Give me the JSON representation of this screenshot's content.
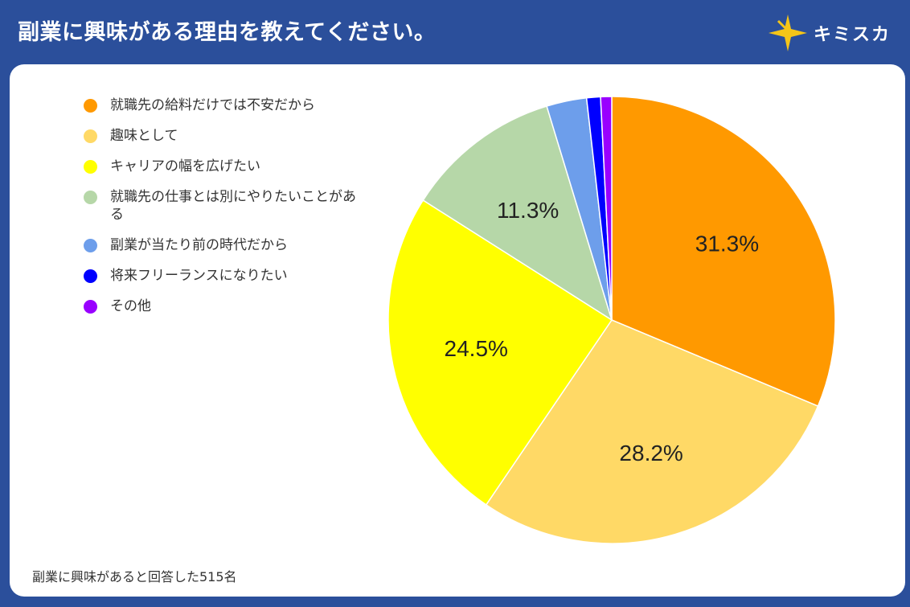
{
  "header": {
    "title": "副業に興味がある理由を教えてください。"
  },
  "brand": {
    "name": "キミスカ",
    "icon": "star-icon",
    "icon_color": "#f5c518"
  },
  "colors": {
    "header_bg": "#2b4f9b",
    "series": [
      "#ff9900",
      "#ffd966",
      "#ffff00",
      "#b6d7a8",
      "#6d9eeb",
      "#0000ff",
      "#9900ff"
    ]
  },
  "chart_data": {
    "type": "pie",
    "categories": [
      "就職先の給料だけでは不安だから",
      "趣味として",
      "キャリアの幅を広げたい",
      "就職先の仕事とは別にやりたいことがある",
      "副業が当たり前の時代だから",
      "将来フリーランスになりたい",
      "その他"
    ],
    "values": [
      31.3,
      28.2,
      24.5,
      11.3,
      2.9,
      1.0,
      0.8
    ],
    "data_labels": [
      "31.3%",
      "28.2%",
      "24.5%",
      "11.3%",
      "",
      "",
      ""
    ],
    "legend_position": "top-left"
  },
  "footnote": "副業に興味があると回答した515名"
}
